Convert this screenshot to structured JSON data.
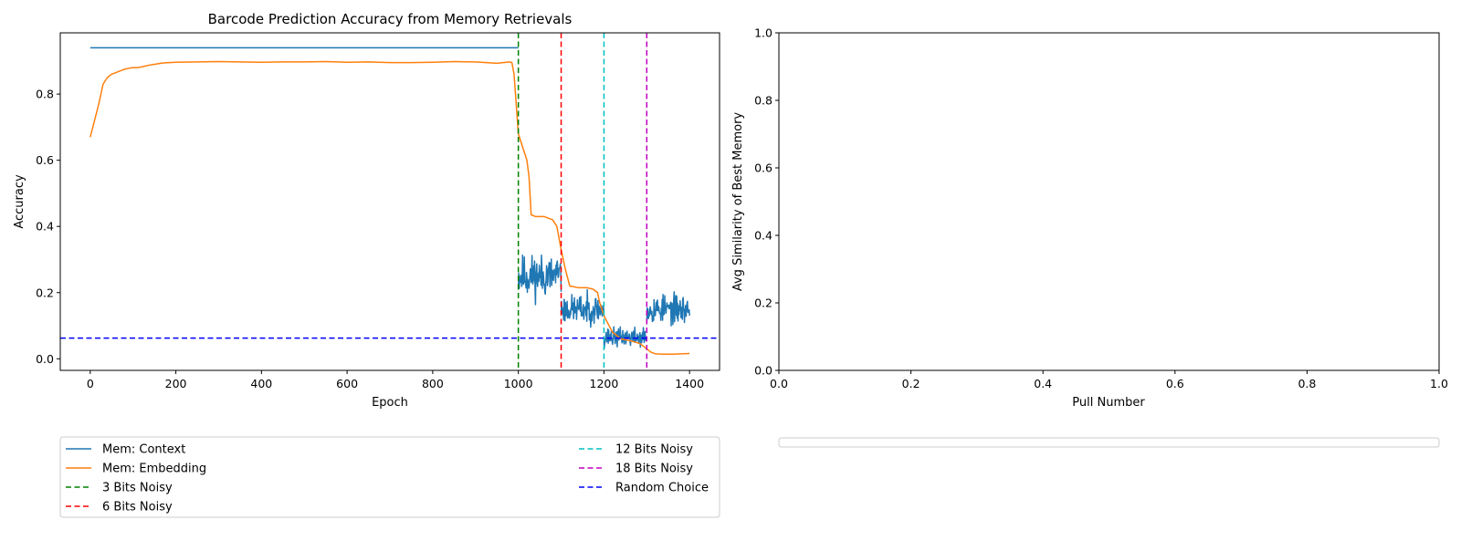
{
  "chart_data": [
    {
      "type": "line",
      "title": "Barcode Prediction Accuracy from Memory Retrievals",
      "xlabel": "Epoch",
      "ylabel": "Accuracy",
      "xlim": [
        -70,
        1470
      ],
      "ylim": [
        -0.035,
        0.985
      ],
      "xticks": [
        0,
        200,
        400,
        600,
        800,
        1000,
        1200,
        1400
      ],
      "xtick_labels": [
        "0",
        "200",
        "400",
        "600",
        "800",
        "1000",
        "1200",
        "1400"
      ],
      "yticks": [
        0.0,
        0.2,
        0.4,
        0.6,
        0.8
      ],
      "ytick_labels": [
        "0.0",
        "0.2",
        "0.4",
        "0.6",
        "0.8"
      ],
      "grid": false,
      "legend_position": "below",
      "series": [
        {
          "name": "Mem: Context",
          "color": "#1f77b4",
          "style": "solid",
          "segments": [
            {
              "x": [
                0,
                1000
              ],
              "y": [
                0.94,
                0.94
              ]
            },
            {
              "x_range": [
                1000,
                1100
              ],
              "mean": 0.25,
              "spread": 0.045,
              "seed": 11
            },
            {
              "x_range": [
                1100,
                1200
              ],
              "mean": 0.15,
              "spread": 0.03,
              "seed": 23
            },
            {
              "x_range": [
                1200,
                1300
              ],
              "mean": 0.065,
              "spread": 0.02,
              "seed": 37
            },
            {
              "x_range": [
                1300,
                1400
              ],
              "mean": 0.15,
              "spread": 0.03,
              "seed": 53
            }
          ]
        },
        {
          "name": "Mem: Embedding",
          "color": "#ff7f0e",
          "style": "solid",
          "x": [
            0,
            10,
            20,
            30,
            40,
            50,
            60,
            70,
            80,
            90,
            100,
            110,
            120,
            130,
            140,
            150,
            160,
            170,
            200,
            250,
            300,
            350,
            400,
            450,
            500,
            550,
            600,
            650,
            700,
            750,
            800,
            850,
            900,
            950,
            980,
            985,
            990,
            1000,
            1010,
            1020,
            1025,
            1030,
            1040,
            1060,
            1080,
            1090,
            1100,
            1110,
            1120,
            1140,
            1160,
            1175,
            1185,
            1190,
            1200,
            1220,
            1240,
            1260,
            1275,
            1285,
            1290,
            1300,
            1310,
            1320,
            1340,
            1360,
            1380,
            1400
          ],
          "y": [
            0.67,
            0.72,
            0.77,
            0.83,
            0.85,
            0.86,
            0.865,
            0.87,
            0.875,
            0.878,
            0.88,
            0.88,
            0.882,
            0.885,
            0.888,
            0.89,
            0.892,
            0.894,
            0.896,
            0.897,
            0.898,
            0.897,
            0.896,
            0.897,
            0.897,
            0.898,
            0.896,
            0.897,
            0.895,
            0.895,
            0.896,
            0.898,
            0.897,
            0.893,
            0.897,
            0.895,
            0.86,
            0.68,
            0.64,
            0.6,
            0.55,
            0.435,
            0.43,
            0.43,
            0.42,
            0.4,
            0.33,
            0.27,
            0.22,
            0.215,
            0.215,
            0.21,
            0.2,
            0.17,
            0.13,
            0.08,
            0.06,
            0.055,
            0.05,
            0.045,
            0.04,
            0.03,
            0.02,
            0.015,
            0.014,
            0.014,
            0.015,
            0.016
          ]
        },
        {
          "name": "3 Bits Noisy",
          "color": "#008000",
          "style": "dashed",
          "vline": 1000
        },
        {
          "name": "6 Bits Noisy",
          "color": "#ff0000",
          "style": "dashed",
          "vline": 1100
        },
        {
          "name": "12 Bits Noisy",
          "color": "#00bfbf",
          "style": "dashed",
          "vline": 1200
        },
        {
          "name": "18 Bits Noisy",
          "color": "#bf00bf",
          "style": "dashed",
          "vline": 1300
        },
        {
          "name": "Random Choice",
          "color": "#0000ff",
          "style": "dashed",
          "hline": 0.0625
        }
      ]
    },
    {
      "type": "line",
      "title": "",
      "xlabel": "Pull Number",
      "ylabel": "Avg Similarity of Best Memory",
      "xlim": [
        0,
        1
      ],
      "ylim": [
        0,
        1
      ],
      "xticks": [
        0.0,
        0.2,
        0.4,
        0.6,
        0.8,
        1.0
      ],
      "xtick_labels": [
        "0.0",
        "0.2",
        "0.4",
        "0.6",
        "0.8",
        "1.0"
      ],
      "yticks": [
        0.0,
        0.2,
        0.4,
        0.6,
        0.8,
        1.0
      ],
      "ytick_labels": [
        "0.0",
        "0.2",
        "0.4",
        "0.6",
        "0.8",
        "1.0"
      ],
      "grid": false,
      "legend_position": "below",
      "series": []
    }
  ]
}
